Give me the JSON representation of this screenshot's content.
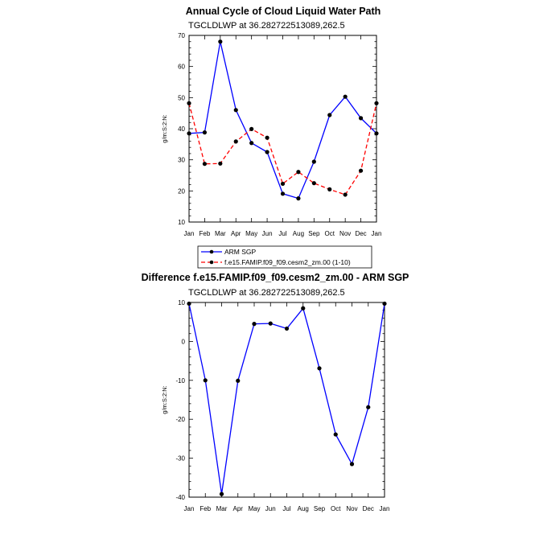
{
  "chart_data": [
    {
      "type": "line",
      "title": "Annual Cycle of Cloud Liquid Water Path",
      "subtitle": "TGCLDLWP at 36.282722513089,262.5",
      "ylabel": "g/m:S:2:N:",
      "xlabel": "",
      "ylim": [
        10,
        70
      ],
      "yticks": [
        10,
        20,
        30,
        40,
        50,
        60,
        70
      ],
      "categories": [
        "Jan",
        "Feb",
        "Mar",
        "Apr",
        "May",
        "Jun",
        "Jul",
        "Aug",
        "Sep",
        "Oct",
        "Nov",
        "Dec",
        "Jan"
      ],
      "series": [
        {
          "name": "ARM SGP",
          "color": "#0000ff",
          "dash": false,
          "values": [
            38.5,
            38.8,
            68.0,
            46.0,
            35.4,
            32.5,
            19.1,
            17.6,
            29.4,
            44.4,
            50.3,
            43.4,
            38.5
          ]
        },
        {
          "name": "f.e15.FAMIP.f09_f09.cesm2_zm.00 (1-10)",
          "color": "#ff0000",
          "dash": true,
          "values": [
            48.2,
            28.7,
            28.8,
            35.9,
            39.9,
            37.1,
            22.3,
            26.1,
            22.5,
            20.5,
            18.8,
            26.5,
            48.2
          ]
        }
      ],
      "legend": "below"
    },
    {
      "type": "line",
      "title": "Difference f.e15.FAMIP.f09_f09.cesm2_zm.00 - ARM SGP",
      "subtitle": "TGCLDLWP at 36.282722513089,262.5",
      "ylabel": "g/m:S:2:N:",
      "xlabel": "",
      "ylim": [
        -40,
        10
      ],
      "yticks": [
        -40,
        -30,
        -20,
        -10,
        0,
        10
      ],
      "categories": [
        "Jan",
        "Feb",
        "Mar",
        "Apr",
        "May",
        "Jun",
        "Jul",
        "Aug",
        "Sep",
        "Oct",
        "Nov",
        "Dec",
        "Jan"
      ],
      "series": [
        {
          "color": "#0000ff",
          "dash": false,
          "values": [
            9.7,
            -10.0,
            -39.2,
            -10.1,
            4.5,
            4.6,
            3.3,
            8.5,
            -6.9,
            -23.9,
            -31.5,
            -16.9,
            9.7
          ]
        }
      ]
    }
  ]
}
